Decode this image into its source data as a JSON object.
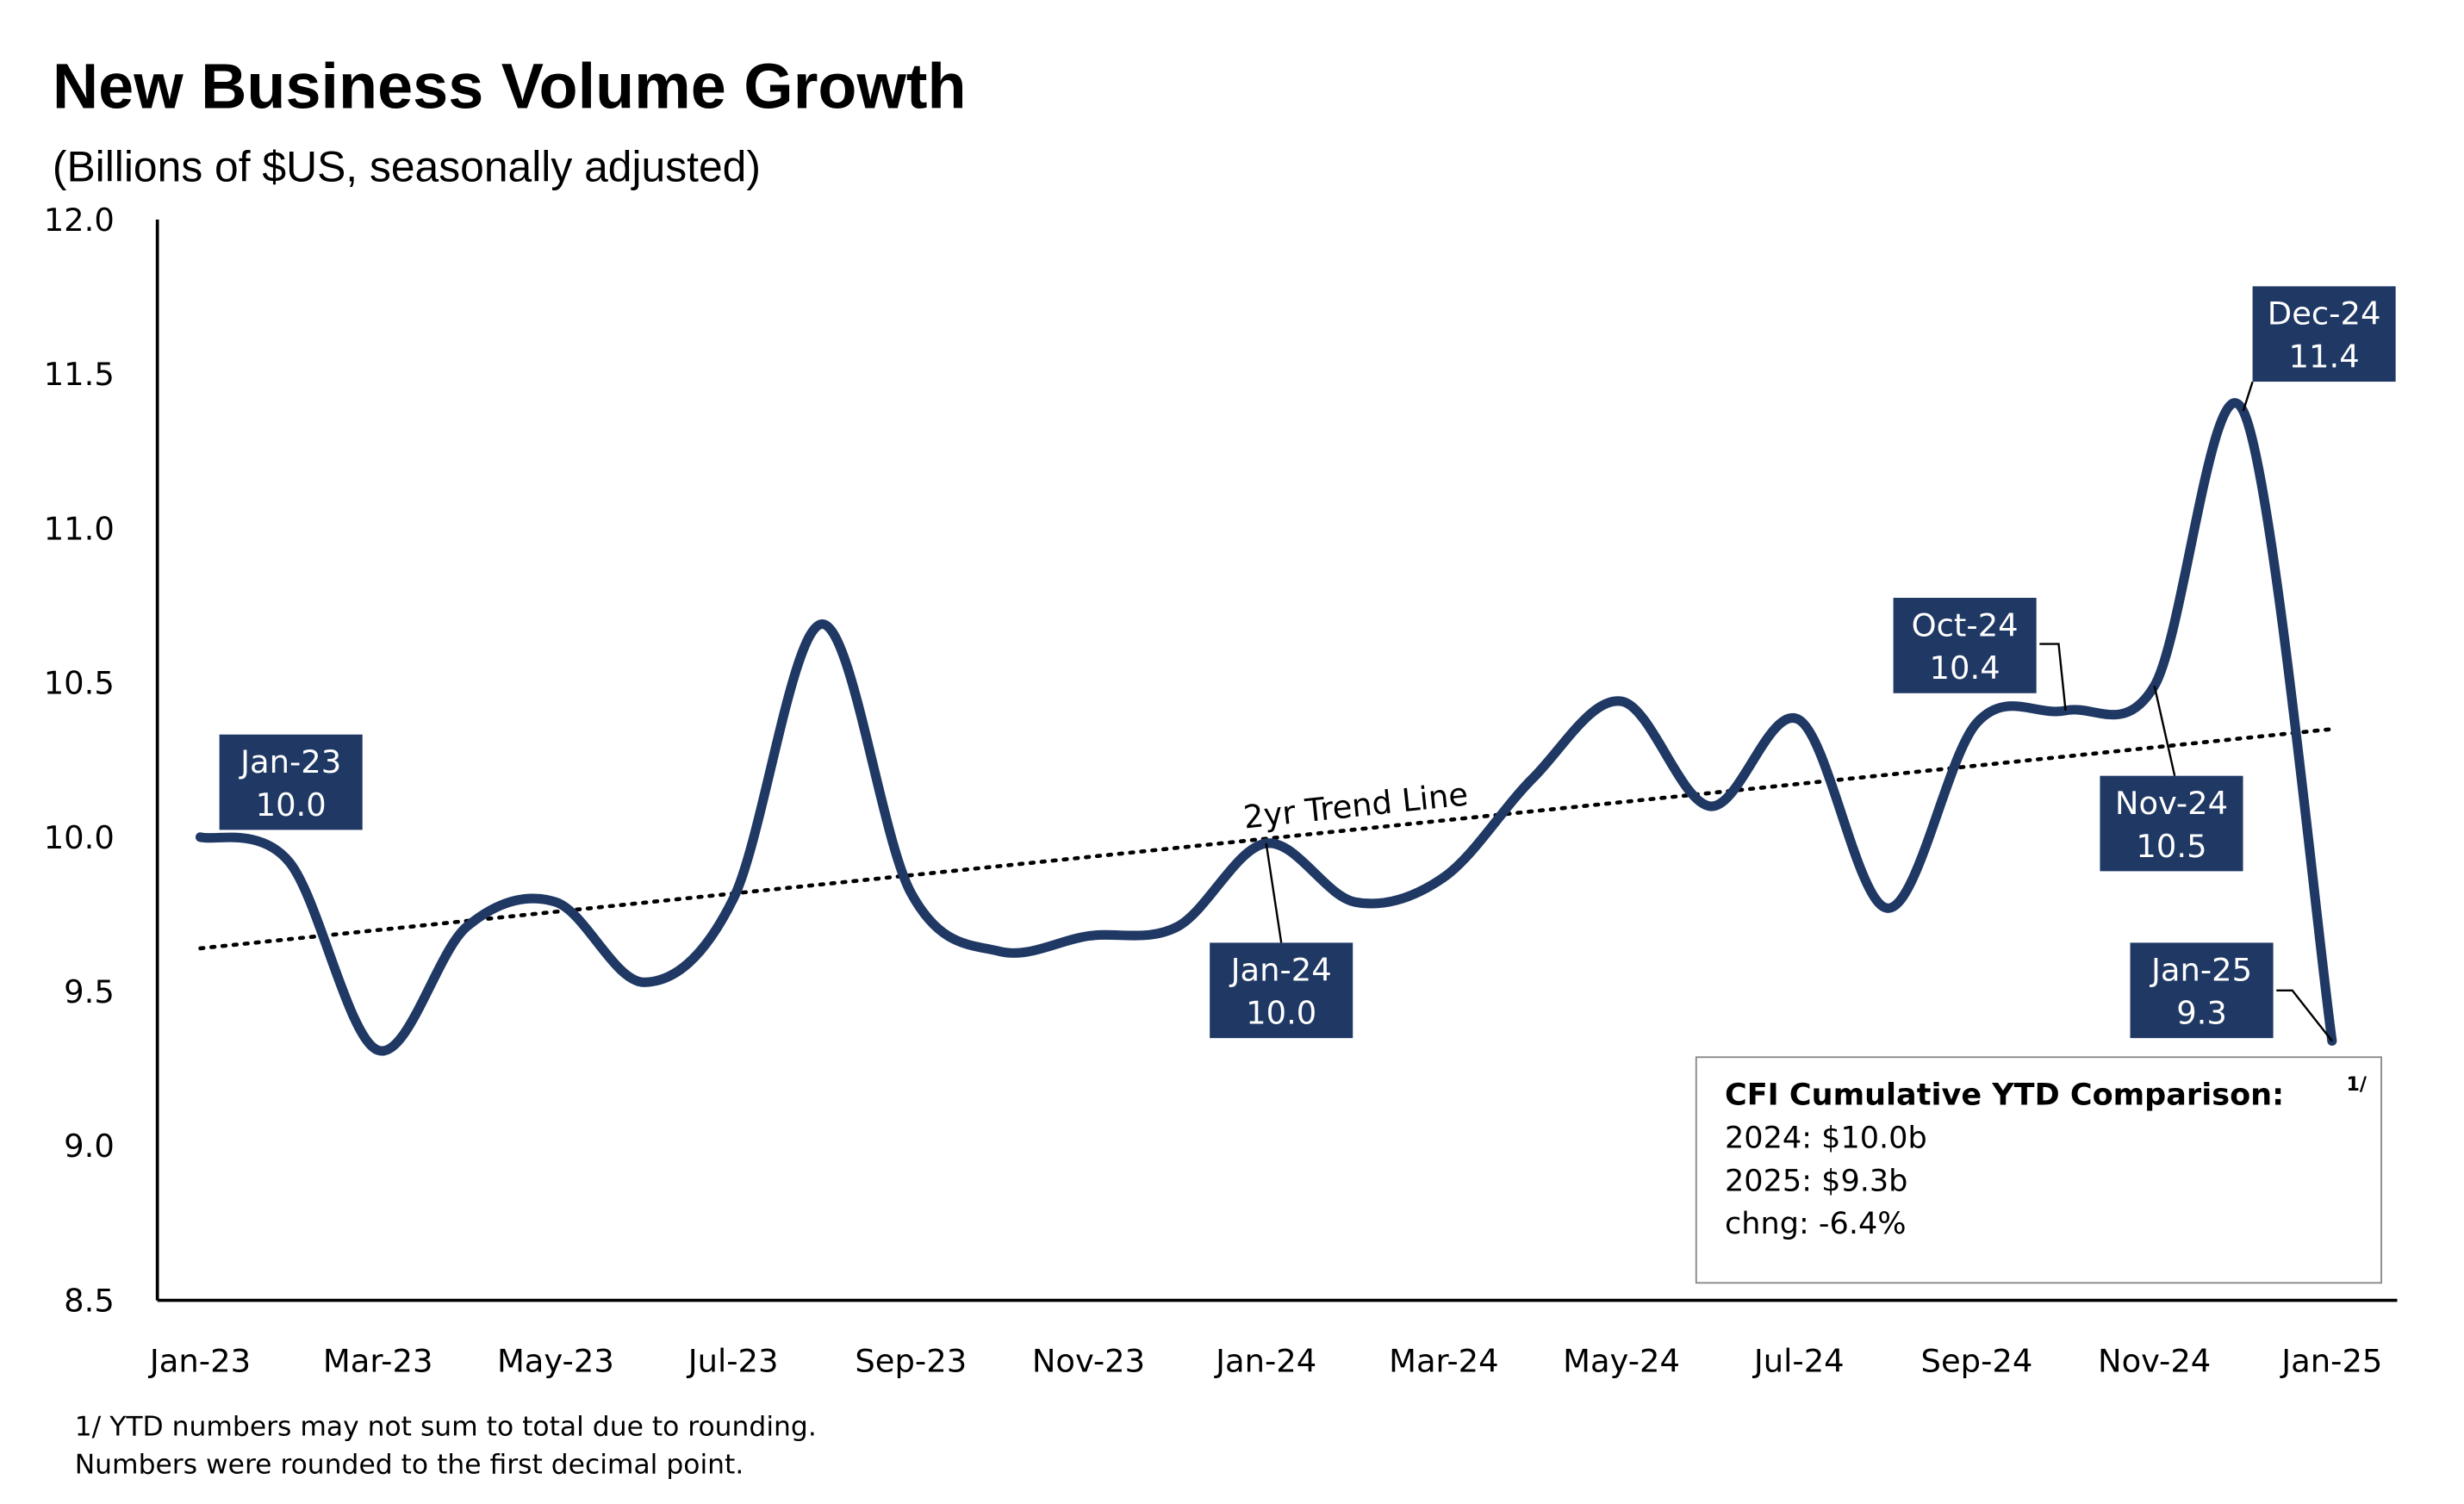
{
  "chart_data": {
    "type": "line",
    "title": "New Business Volume Growth",
    "subtitle": "(Billions of $US, seasonally adjusted)",
    "xlabel": "",
    "ylabel": "",
    "ylim": [
      8.5,
      12.0
    ],
    "yticks": [
      "12.0",
      "11.5",
      "11.0",
      "10.5",
      "10.0",
      "9.5",
      "9.0",
      "8.5"
    ],
    "xtick_labels": [
      "Jan-23",
      "Mar-23",
      "May-23",
      "Jul-23",
      "Sep-23",
      "Nov-23",
      "Jan-24",
      "Mar-24",
      "May-24",
      "Jul-24",
      "Sep-24",
      "Nov-24",
      "Jan-25"
    ],
    "grid": false,
    "line_color": "#1f3864",
    "x": [
      "Jan-23",
      "Feb-23",
      "Mar-23",
      "Apr-23",
      "May-23",
      "Jun-23",
      "Jul-23",
      "Aug-23",
      "Sep-23",
      "Oct-23",
      "Nov-23",
      "Dec-23",
      "Jan-24",
      "Feb-24",
      "Mar-24",
      "Apr-24",
      "May-24",
      "Jun-24",
      "Jul-24",
      "Aug-24",
      "Sep-24",
      "Oct-24",
      "Nov-24",
      "Dec-24",
      "Jan-25"
    ],
    "values": [
      10.0,
      9.92,
      9.31,
      9.71,
      9.79,
      9.53,
      9.8,
      10.69,
      9.82,
      9.63,
      9.68,
      9.71,
      9.98,
      9.79,
      9.87,
      10.19,
      10.44,
      10.1,
      10.38,
      9.77,
      10.37,
      10.41,
      10.49,
      11.38,
      9.34
    ],
    "trend_line": {
      "label": "2yr Trend Line",
      "start": 9.64,
      "end": 10.35
    },
    "annotations": [
      {
        "month": "Jan-23",
        "value": "10.0"
      },
      {
        "month": "Jan-24",
        "value": "10.0"
      },
      {
        "month": "Oct-24",
        "value": "10.4"
      },
      {
        "month": "Nov-24",
        "value": "10.5"
      },
      {
        "month": "Dec-24",
        "value": "11.4"
      },
      {
        "month": "Jan-25",
        "value": "9.3"
      }
    ],
    "stats_box": {
      "title": "CFI Cumulative YTD Comparison:",
      "footnote_mark": "1/",
      "lines": [
        "2024: $10.0b",
        "2025: $9.3b",
        "chng: -6.4%"
      ]
    },
    "footnotes": [
      "1/ YTD numbers may not sum to total due to rounding.",
      "Numbers were rounded to the first decimal point."
    ]
  }
}
